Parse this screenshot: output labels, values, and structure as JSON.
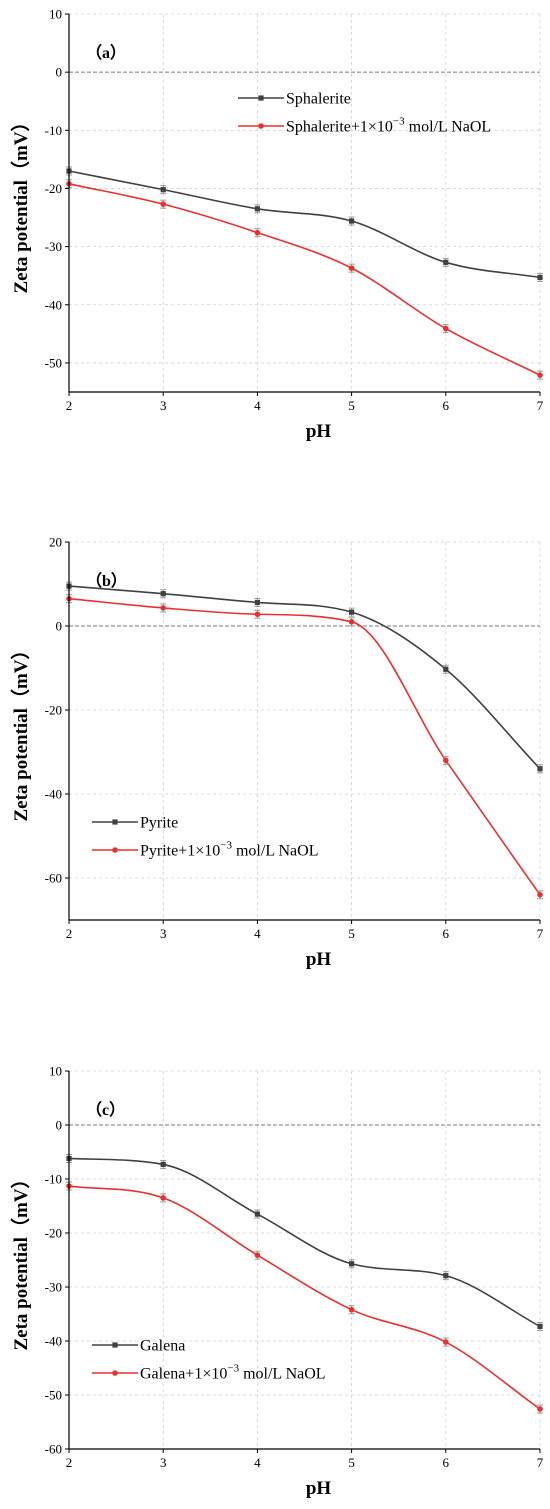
{
  "chart_data": [
    {
      "type": "line",
      "panel_label": "（a）",
      "xlabel": "pH",
      "ylabel": "Zeta potential（mV）",
      "xlim": [
        2,
        7
      ],
      "ylim": [
        -55,
        10
      ],
      "xticks": [
        2,
        3,
        4,
        5,
        6,
        7
      ],
      "yticks": [
        10,
        0,
        -10,
        -20,
        -30,
        -40,
        -50
      ],
      "grid": true,
      "legend_position": "top-right",
      "series": [
        {
          "name": "Sphalerite",
          "color": "#404040",
          "marker": "square",
          "x": [
            2,
            3,
            4,
            5,
            6,
            7
          ],
          "y": [
            -17,
            -20.2,
            -23.5,
            -25.6,
            -32.7,
            -35.3
          ]
        },
        {
          "name": "Sphalerite+1×10",
          "name_sup": "−3",
          "name_tail": " mol/L NaOL",
          "color": "#e8312f",
          "marker": "circle",
          "x": [
            2,
            3,
            4,
            5,
            6,
            7
          ],
          "y": [
            -19.2,
            -22.7,
            -27.6,
            -33.7,
            -44.1,
            -52.1
          ]
        }
      ]
    },
    {
      "type": "line",
      "panel_label": "（b）",
      "xlabel": "pH",
      "ylabel": "Zeta potential（mV）",
      "xlim": [
        2,
        7
      ],
      "ylim": [
        -70,
        20
      ],
      "xticks": [
        2,
        3,
        4,
        5,
        6,
        7
      ],
      "yticks": [
        20,
        0,
        -20,
        -40,
        -60
      ],
      "grid": true,
      "legend_position": "bottom-left",
      "series": [
        {
          "name": "Pyrite",
          "color": "#404040",
          "marker": "square",
          "x": [
            2,
            3,
            4,
            5,
            6,
            7
          ],
          "y": [
            9.5,
            7.7,
            5.6,
            3.3,
            -10.3,
            -34
          ]
        },
        {
          "name": "Pyrite+1×10",
          "name_sup": "−3",
          "name_tail": " mol/L NaOL",
          "color": "#e8312f",
          "marker": "circle",
          "x": [
            2,
            3,
            4,
            5,
            6,
            7
          ],
          "y": [
            6.5,
            4.3,
            2.8,
            1,
            -32,
            -64
          ]
        }
      ]
    },
    {
      "type": "line",
      "panel_label": "（c）",
      "xlabel": "pH",
      "ylabel": "Zeta potential（mV）",
      "xlim": [
        2,
        7
      ],
      "ylim": [
        -60,
        10
      ],
      "xticks": [
        2,
        3,
        4,
        5,
        6,
        7
      ],
      "yticks": [
        10,
        0,
        -10,
        -20,
        -30,
        -40,
        -50,
        -60
      ],
      "grid": true,
      "legend_position": "bottom-left",
      "series": [
        {
          "name": "Galena",
          "color": "#404040",
          "marker": "square",
          "x": [
            2,
            3,
            4,
            5,
            6,
            7
          ],
          "y": [
            -6.2,
            -7.3,
            -16.5,
            -25.7,
            -27.9,
            -37.3
          ]
        },
        {
          "name": "Galena+1×10",
          "name_sup": "−3",
          "name_tail": " mol/L NaOL",
          "color": "#e8312f",
          "marker": "circle",
          "x": [
            2,
            3,
            4,
            5,
            6,
            7
          ],
          "y": [
            -11.3,
            -13.5,
            -24.1,
            -34.2,
            -40.2,
            -52.6
          ]
        }
      ]
    }
  ]
}
